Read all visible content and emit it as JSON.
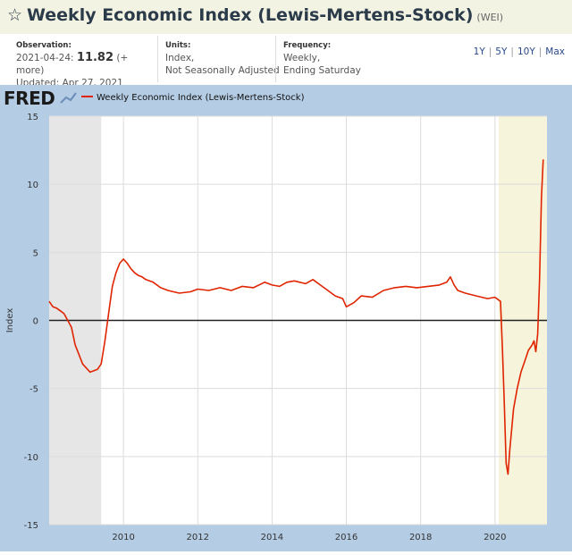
{
  "header": {
    "star_icon": "star-outline-icon",
    "title": "Weekly Economic Index (Lewis-Mertens-Stock)",
    "code": "(WEI)"
  },
  "meta": {
    "observation_label": "Observation:",
    "observation_date": "2021-04-24:",
    "observation_value": "11.82",
    "observation_more": "(+ more)",
    "updated": "Updated: Apr 27, 2021",
    "units_label": "Units:",
    "units_line1": "Index,",
    "units_line2": "Not Seasonally Adjusted",
    "frequency_label": "Frequency:",
    "frequency_line1": "Weekly,",
    "frequency_line2": "Ending Saturday"
  },
  "ranges": [
    "1Y",
    "5Y",
    "10Y",
    "Max"
  ],
  "colors": {
    "series": "#e02400",
    "background_frame": "#b4cce4",
    "recession_shade": "#e6e6e6",
    "highlight_shade": "#f6f4da"
  },
  "chart_data": {
    "type": "line",
    "logo": "FRED",
    "legend": "Weekly Economic Index (Lewis-Mertens-Stock)",
    "ylabel": "Index",
    "xlabel": "",
    "ylim": [
      -15,
      15
    ],
    "xlim": [
      2008.0,
      2021.4
    ],
    "yticks": [
      "-15",
      "-10",
      "-5",
      "0",
      "5",
      "10",
      "15"
    ],
    "xticks": [
      "2010",
      "2012",
      "2014",
      "2016",
      "2018",
      "2020"
    ],
    "zero_line": true,
    "shaded_periods": [
      {
        "kind": "recession",
        "start": 2008.0,
        "end": 2009.4
      },
      {
        "kind": "recession",
        "start": 2020.1,
        "end": 2021.4
      }
    ],
    "series": [
      {
        "name": "Weekly Economic Index (Lewis-Mertens-Stock)",
        "x": [
          2008.0,
          2008.1,
          2008.2,
          2008.3,
          2008.4,
          2008.5,
          2008.6,
          2008.7,
          2008.8,
          2008.9,
          2009.0,
          2009.1,
          2009.2,
          2009.3,
          2009.4,
          2009.5,
          2009.6,
          2009.7,
          2009.8,
          2009.9,
          2010.0,
          2010.1,
          2010.2,
          2010.3,
          2010.4,
          2010.5,
          2010.6,
          2010.8,
          2011.0,
          2011.2,
          2011.5,
          2011.8,
          2012.0,
          2012.3,
          2012.6,
          2012.9,
          2013.2,
          2013.5,
          2013.8,
          2014.0,
          2014.2,
          2014.4,
          2014.6,
          2014.9,
          2015.1,
          2015.3,
          2015.5,
          2015.7,
          2015.9,
          2016.0,
          2016.2,
          2016.4,
          2016.7,
          2017.0,
          2017.3,
          2017.6,
          2017.9,
          2018.2,
          2018.5,
          2018.7,
          2018.8,
          2018.9,
          2019.0,
          2019.2,
          2019.5,
          2019.8,
          2020.0,
          2020.15,
          2020.2,
          2020.25,
          2020.3,
          2020.35,
          2020.4,
          2020.5,
          2020.6,
          2020.7,
          2020.8,
          2020.9,
          2021.0,
          2021.05,
          2021.1,
          2021.15,
          2021.2,
          2021.25,
          2021.3
        ],
        "y": [
          1.4,
          1.0,
          0.9,
          0.7,
          0.5,
          0.0,
          -0.5,
          -1.8,
          -2.5,
          -3.2,
          -3.5,
          -3.8,
          -3.7,
          -3.6,
          -3.2,
          -1.5,
          0.5,
          2.5,
          3.5,
          4.2,
          4.5,
          4.2,
          3.8,
          3.5,
          3.3,
          3.2,
          3.0,
          2.8,
          2.4,
          2.2,
          2.0,
          2.1,
          2.3,
          2.2,
          2.4,
          2.2,
          2.5,
          2.4,
          2.8,
          2.6,
          2.5,
          2.8,
          2.9,
          2.7,
          3.0,
          2.6,
          2.2,
          1.8,
          1.6,
          1.0,
          1.3,
          1.8,
          1.7,
          2.2,
          2.4,
          2.5,
          2.4,
          2.5,
          2.6,
          2.8,
          3.2,
          2.6,
          2.2,
          2.0,
          1.8,
          1.6,
          1.7,
          1.4,
          -2.0,
          -6.0,
          -10.5,
          -11.3,
          -9.5,
          -6.5,
          -5.0,
          -3.8,
          -3.0,
          -2.2,
          -1.8,
          -1.5,
          -2.3,
          -1.0,
          3.0,
          9.0,
          11.82
        ]
      }
    ]
  }
}
